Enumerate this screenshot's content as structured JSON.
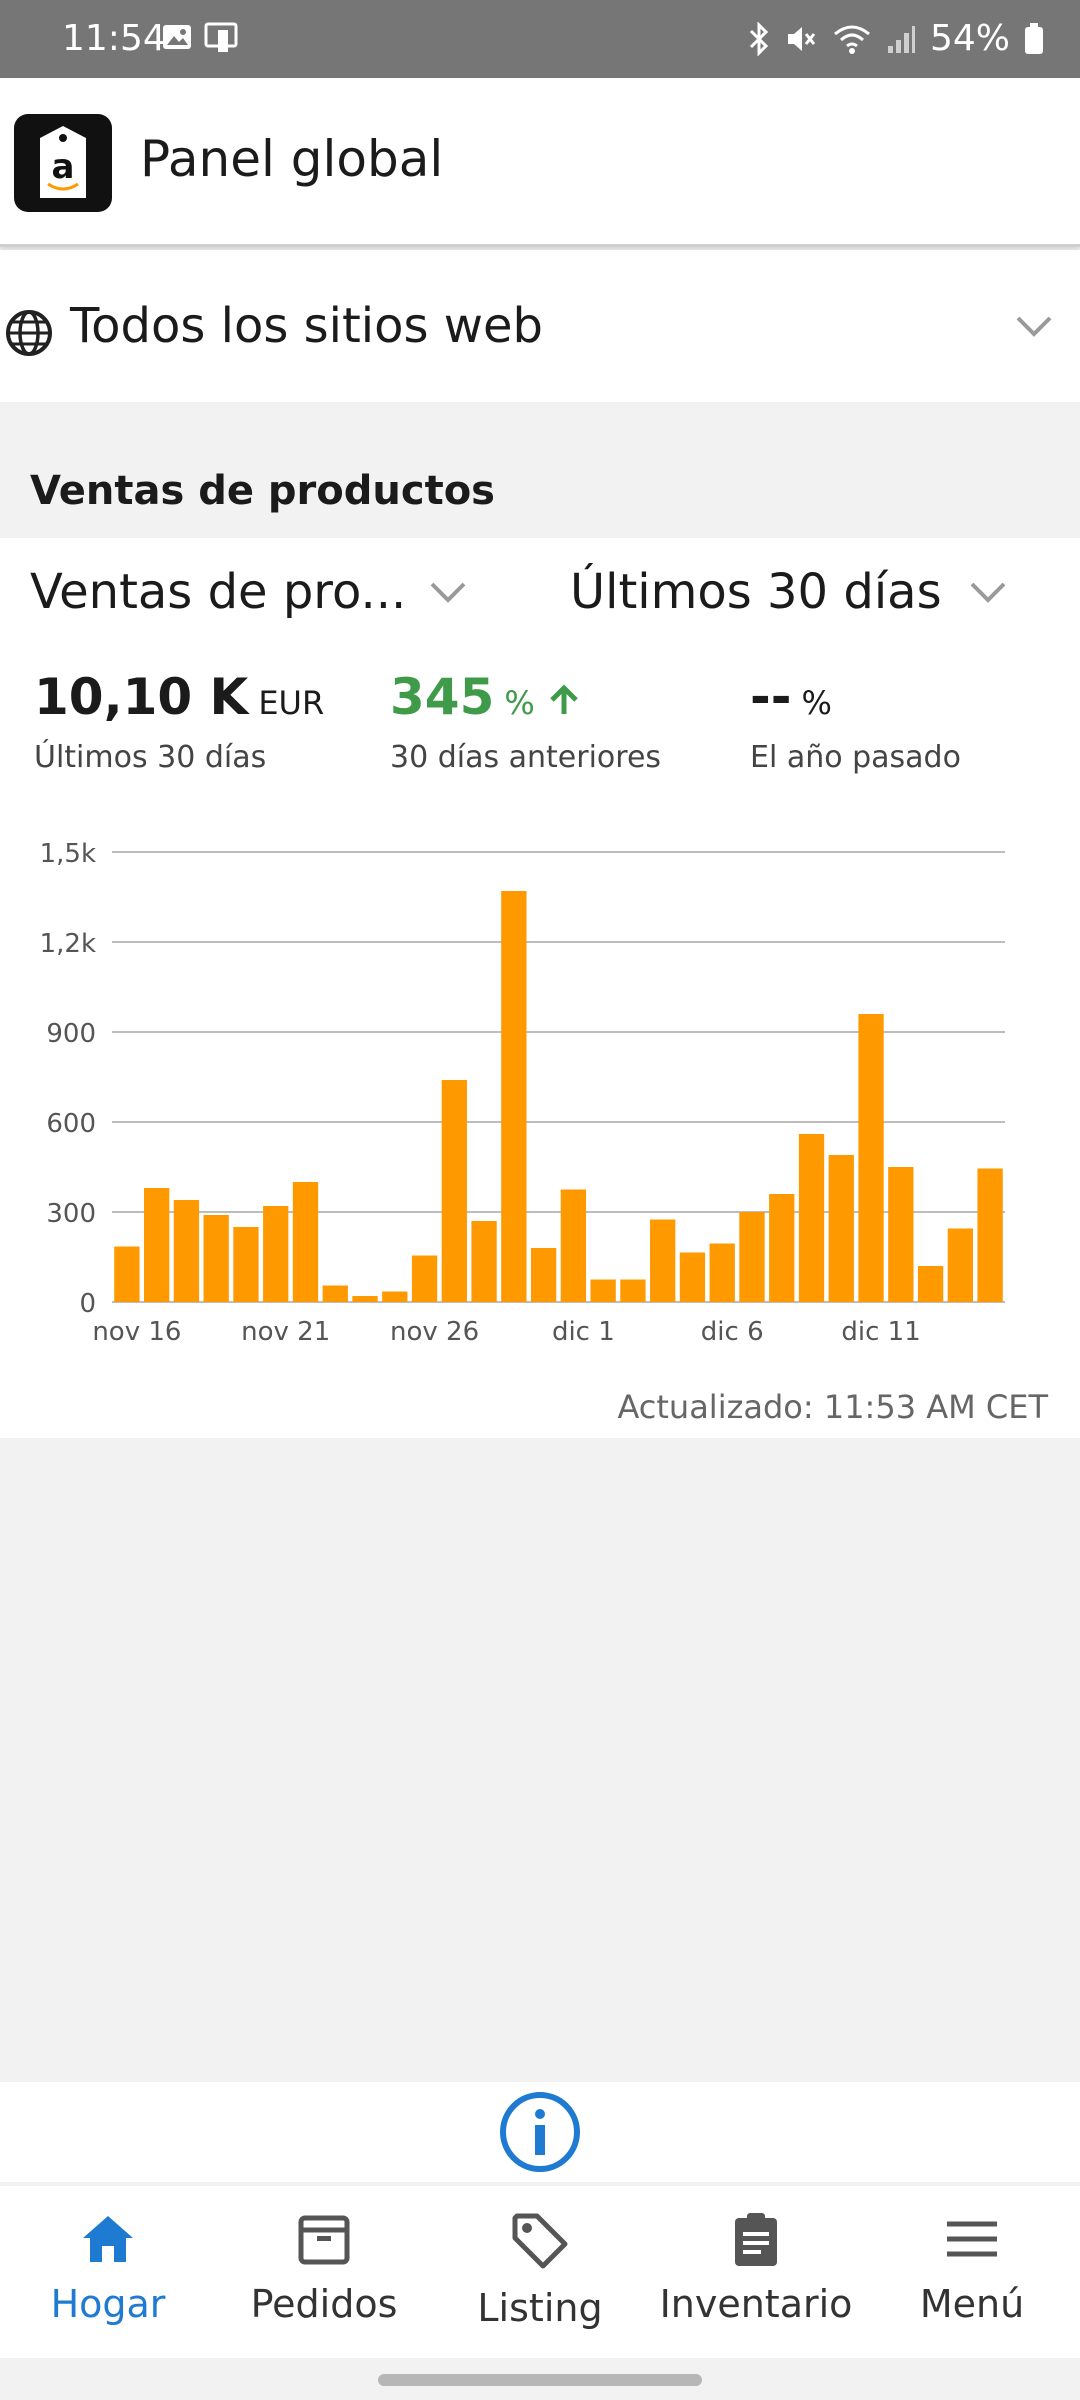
{
  "status_bar": {
    "time": "11:54",
    "battery": "54%",
    "icons": [
      "image-icon",
      "device-icon",
      "bluetooth-icon",
      "mute-icon",
      "wifi-icon",
      "signal-icon",
      "battery-icon"
    ]
  },
  "app": {
    "title": "Panel global",
    "logo_letter": "a"
  },
  "site_selector": {
    "label": "Todos los sitios web"
  },
  "section": {
    "title": "Ventas de productos"
  },
  "card": {
    "metric_dropdown": "Ventas de pro...",
    "period_dropdown": "Últimos 30 días",
    "metrics": [
      {
        "value": "10,10 K",
        "unit": "EUR",
        "label": "Últimos 30 días"
      },
      {
        "value": "345",
        "unit": "%",
        "label": "30 días anteriores"
      },
      {
        "value": "--",
        "unit": "%",
        "label": "El año pasado"
      }
    ],
    "updated": "Actualizado: 11:53 AM CET"
  },
  "chart_data": {
    "type": "bar",
    "categories": [
      "nov 16",
      "nov 17",
      "nov 18",
      "nov 19",
      "nov 20",
      "nov 21",
      "nov 22",
      "nov 23",
      "nov 24",
      "nov 25",
      "nov 26",
      "nov 27",
      "nov 28",
      "nov 29",
      "nov 30",
      "dic 1",
      "dic 2",
      "dic 3",
      "dic 4",
      "dic 5",
      "dic 6",
      "dic 7",
      "dic 8",
      "dic 9",
      "dic 10",
      "dic 11",
      "dic 12",
      "dic 13",
      "dic 14",
      "dic 15"
    ],
    "tick_labels": [
      "nov 16",
      "nov 21",
      "nov 26",
      "dic 1",
      "dic 6",
      "dic 11"
    ],
    "tick_indices": [
      0,
      5,
      10,
      15,
      20,
      25
    ],
    "y_ticks": [
      "0",
      "300",
      "600",
      "900",
      "1,2k",
      "1,5k"
    ],
    "values": [
      185,
      380,
      340,
      290,
      250,
      320,
      400,
      55,
      20,
      35,
      155,
      740,
      270,
      1370,
      180,
      375,
      75,
      75,
      275,
      165,
      195,
      300,
      360,
      560,
      490,
      960,
      450,
      120,
      245,
      445
    ],
    "ylim": [
      0,
      1500
    ],
    "color": "#ff9900",
    "grid": true
  },
  "info_button": {
    "icon": "info-icon"
  },
  "nav": {
    "items": [
      {
        "label": "Hogar",
        "icon": "home-icon",
        "active": true
      },
      {
        "label": "Pedidos",
        "icon": "box-icon",
        "active": false
      },
      {
        "label": "Listing",
        "icon": "tag-icon",
        "active": false
      },
      {
        "label": "Inventario",
        "icon": "clipboard-icon",
        "active": false
      },
      {
        "label": "Menú",
        "icon": "hamburger-icon",
        "active": false
      }
    ]
  },
  "colors": {
    "accent": "#1f7ad1",
    "positive": "#3f9b49",
    "bar": "#ff9900"
  }
}
